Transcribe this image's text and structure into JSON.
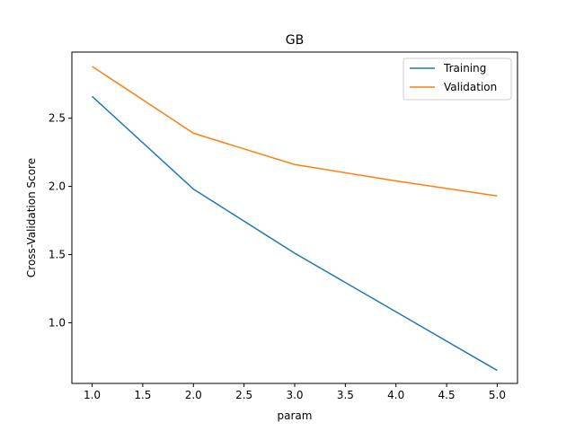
{
  "chart_data": {
    "type": "line",
    "title": "GB",
    "xlabel": "param",
    "ylabel": "Cross-Validation Score",
    "x": [
      1.0,
      2.0,
      3.0,
      4.0,
      5.0
    ],
    "xlim": [
      0.8,
      5.2
    ],
    "ylim": [
      0.555,
      2.985
    ],
    "xticks": [
      "1.0",
      "1.5",
      "2.0",
      "2.5",
      "3.0",
      "3.5",
      "4.0",
      "4.5",
      "5.0"
    ],
    "yticks": [
      "1.0",
      "1.5",
      "2.0",
      "2.5"
    ],
    "legend_position": "top-right",
    "grid": false,
    "series": [
      {
        "name": "Training",
        "color": "#1f77b4",
        "values": [
          2.66,
          1.98,
          1.51,
          1.08,
          0.65
        ]
      },
      {
        "name": "Validation",
        "color": "#ff7f0e",
        "values": [
          2.88,
          2.39,
          2.16,
          2.04,
          1.93
        ]
      }
    ]
  }
}
